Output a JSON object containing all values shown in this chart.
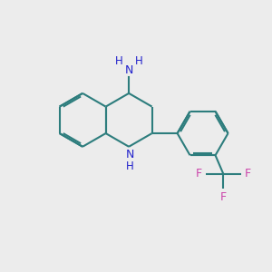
{
  "background_color": "#ececec",
  "bond_color": "#2d7d7d",
  "n_color": "#2222cc",
  "f_color": "#cc44aa",
  "bond_width": 1.5,
  "dbo": 0.055,
  "figsize": [
    3.0,
    3.0
  ],
  "dpi": 100,
  "xlim": [
    0,
    10
  ],
  "ylim": [
    0,
    10
  ]
}
